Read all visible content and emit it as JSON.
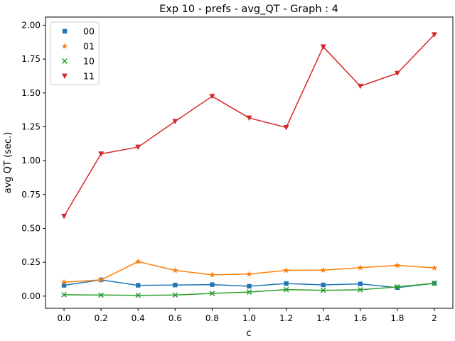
{
  "chart_data": {
    "type": "line",
    "title": "Exp 10 - prefs - avg_QT - Graph : 4",
    "xlabel": "c",
    "ylabel": "avg QT (sec.)",
    "x": [
      0.0,
      0.2,
      0.4,
      0.6,
      0.8,
      1.0,
      1.2,
      1.4,
      1.6,
      1.8,
      2.0
    ],
    "x_tick_labels": [
      "0.0",
      "0.2",
      "0.4",
      "0.6",
      "0.8",
      "1.0",
      "1.2",
      "1.4",
      "1.6",
      "1.8",
      "2"
    ],
    "y_ticks": [
      0.0,
      0.25,
      0.5,
      0.75,
      1.0,
      1.25,
      1.5,
      1.75,
      2.0
    ],
    "y_tick_labels": [
      "0.00",
      "0.25",
      "0.50",
      "0.75",
      "1.00",
      "1.25",
      "1.50",
      "1.75",
      "2.00"
    ],
    "xlim": [
      -0.1,
      2.1
    ],
    "ylim": [
      -0.09,
      2.06
    ],
    "grid": false,
    "legend_position": "top-left",
    "series": [
      {
        "name": "00",
        "color": "#1f77b4",
        "marker": "square",
        "values": [
          0.08,
          0.12,
          0.08,
          0.082,
          0.085,
          0.073,
          0.093,
          0.083,
          0.09,
          0.063,
          0.095
        ]
      },
      {
        "name": "01",
        "color": "#ff7f0e",
        "marker": "star",
        "values": [
          0.103,
          0.12,
          0.255,
          0.19,
          0.157,
          0.163,
          0.19,
          0.192,
          0.21,
          0.227,
          0.208
        ]
      },
      {
        "name": "10",
        "color": "#2ca02c",
        "marker": "x",
        "values": [
          0.01,
          0.008,
          0.006,
          0.008,
          0.02,
          0.03,
          0.048,
          0.043,
          0.047,
          0.068,
          0.095
        ]
      },
      {
        "name": "11",
        "color": "#d62728",
        "marker": "triangle-down",
        "values": [
          0.59,
          1.05,
          1.1,
          1.29,
          1.475,
          1.315,
          1.245,
          1.84,
          1.55,
          1.645,
          1.93
        ]
      }
    ]
  }
}
